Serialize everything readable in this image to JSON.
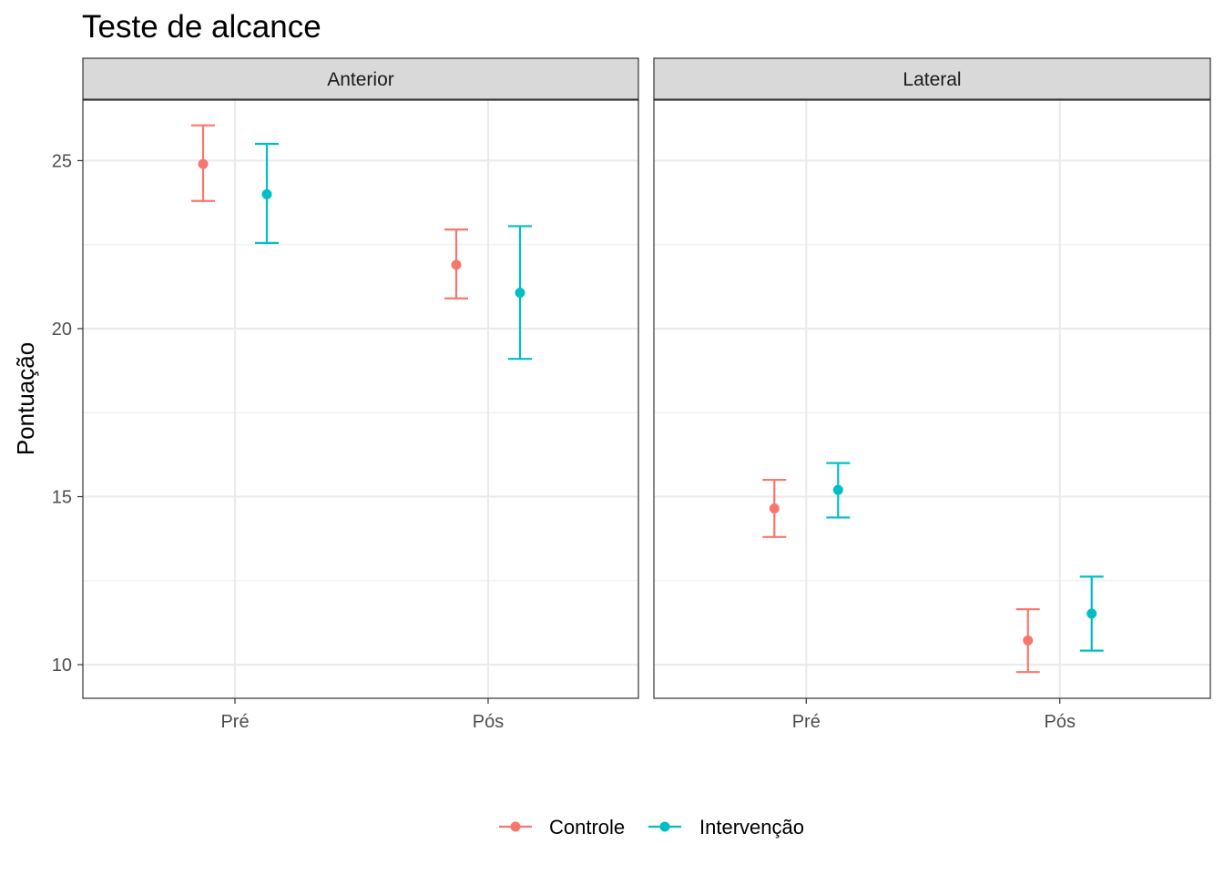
{
  "chart_data": {
    "type": "scatter",
    "title": "Teste de alcance",
    "ylabel": "Pontuação",
    "xlabel": "",
    "ylim": [
      9.0,
      26.8
    ],
    "yticks": [
      10,
      15,
      20,
      25
    ],
    "categories": [
      "Pré",
      "Pós"
    ],
    "grid": true,
    "legend_position": "bottom",
    "panels": [
      {
        "name": "Anterior",
        "series": [
          {
            "name": "Controle",
            "color": "#F8766D",
            "points": [
              {
                "x": "Pré",
                "y": 24.9,
                "ymin": 23.8,
                "ymax": 26.05
              },
              {
                "x": "Pós",
                "y": 21.9,
                "ymin": 20.9,
                "ymax": 22.95
              }
            ]
          },
          {
            "name": "Intervenção",
            "color": "#00BFC4",
            "points": [
              {
                "x": "Pré",
                "y": 24.0,
                "ymin": 22.55,
                "ymax": 25.5
              },
              {
                "x": "Pós",
                "y": 21.07,
                "ymin": 19.1,
                "ymax": 23.05
              }
            ]
          }
        ]
      },
      {
        "name": "Lateral",
        "series": [
          {
            "name": "Controle",
            "color": "#F8766D",
            "points": [
              {
                "x": "Pré",
                "y": 14.65,
                "ymin": 13.8,
                "ymax": 15.5
              },
              {
                "x": "Pós",
                "y": 10.72,
                "ymin": 9.78,
                "ymax": 11.65
              }
            ]
          },
          {
            "name": "Intervenção",
            "color": "#00BFC4",
            "points": [
              {
                "x": "Pré",
                "y": 15.2,
                "ymin": 14.38,
                "ymax": 16.0
              },
              {
                "x": "Pós",
                "y": 11.52,
                "ymin": 10.42,
                "ymax": 12.62
              }
            ]
          }
        ]
      }
    ],
    "legend": [
      {
        "name": "Controle",
        "color": "#F8766D"
      },
      {
        "name": "Intervenção",
        "color": "#00BFC4"
      }
    ]
  }
}
